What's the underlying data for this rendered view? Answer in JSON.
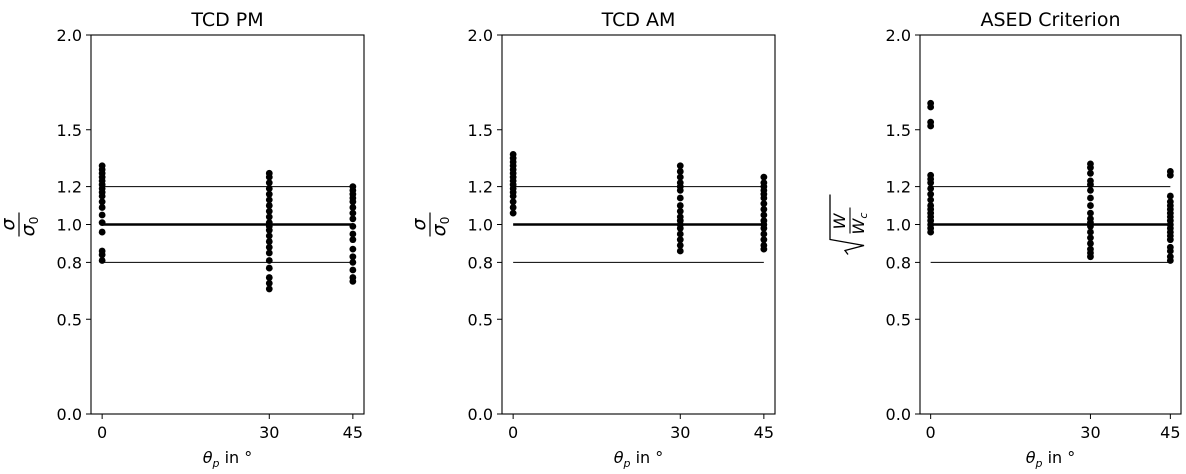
{
  "chart_data": [
    {
      "type": "scatter",
      "title": "TCD PM",
      "xlabel": {
        "symbol": "θ",
        "subscript": "p",
        "rest": " in °"
      },
      "ylabel": {
        "kind": "fraction",
        "num": "σ",
        "den": "σ",
        "den_sub": "0"
      },
      "x_ticks": [
        0,
        30,
        45
      ],
      "y_ticks": [
        0.0,
        0.5,
        0.8,
        1.0,
        1.2,
        1.5,
        2.0
      ],
      "y_tick_labels": [
        "0.0",
        "0.5",
        "0.8",
        "1.0",
        "1.2",
        "1.5",
        "2.0"
      ],
      "xlim": [
        -2,
        47
      ],
      "ylim": [
        0,
        2
      ],
      "reference_lines": [
        {
          "y": 0.8,
          "weight": "thin"
        },
        {
          "y": 1.0,
          "weight": "thick"
        },
        {
          "y": 1.2,
          "weight": "thin"
        }
      ],
      "series": [
        {
          "x": 0,
          "values": [
            0.81,
            0.84,
            0.86,
            0.96,
            1.01,
            1.05,
            1.09,
            1.12,
            1.15,
            1.17,
            1.19,
            1.21,
            1.23,
            1.25,
            1.27,
            1.29,
            1.31
          ]
        },
        {
          "x": 30,
          "values": [
            0.66,
            0.69,
            0.72,
            0.77,
            0.81,
            0.85,
            0.88,
            0.91,
            0.94,
            0.97,
            0.99,
            1.01,
            1.04,
            1.07,
            1.1,
            1.13,
            1.16,
            1.19,
            1.22,
            1.25,
            1.27
          ]
        },
        {
          "x": 45,
          "values": [
            0.7,
            0.72,
            0.76,
            0.8,
            0.83,
            0.87,
            0.92,
            0.95,
            0.99,
            1.03,
            1.06,
            1.09,
            1.12,
            1.14,
            1.16,
            1.18,
            1.2
          ]
        }
      ]
    },
    {
      "type": "scatter",
      "title": "TCD AM",
      "xlabel": {
        "symbol": "θ",
        "subscript": "p",
        "rest": " in °"
      },
      "ylabel": {
        "kind": "fraction",
        "num": "σ",
        "den": "σ",
        "den_sub": "0"
      },
      "x_ticks": [
        0,
        30,
        45
      ],
      "y_ticks": [
        0.0,
        0.5,
        0.8,
        1.0,
        1.2,
        1.5,
        2.0
      ],
      "y_tick_labels": [
        "0.0",
        "0.5",
        "0.8",
        "1.0",
        "1.2",
        "1.5",
        "2.0"
      ],
      "xlim": [
        -2,
        47
      ],
      "ylim": [
        0,
        2
      ],
      "reference_lines": [
        {
          "y": 0.8,
          "weight": "thin"
        },
        {
          "y": 1.0,
          "weight": "thick"
        },
        {
          "y": 1.2,
          "weight": "thin"
        }
      ],
      "series": [
        {
          "x": 0,
          "values": [
            1.06,
            1.09,
            1.12,
            1.15,
            1.17,
            1.19,
            1.21,
            1.23,
            1.25,
            1.27,
            1.29,
            1.31,
            1.33,
            1.35,
            1.37
          ]
        },
        {
          "x": 30,
          "values": [
            0.86,
            0.89,
            0.92,
            0.95,
            0.98,
            1.0,
            1.02,
            1.04,
            1.07,
            1.1,
            1.14,
            1.18,
            1.2,
            1.22,
            1.25,
            1.28,
            1.31
          ]
        },
        {
          "x": 45,
          "values": [
            0.87,
            0.89,
            0.92,
            0.95,
            0.98,
            1.0,
            1.02,
            1.05,
            1.08,
            1.11,
            1.14,
            1.16,
            1.18,
            1.2,
            1.22,
            1.25
          ]
        }
      ]
    },
    {
      "type": "scatter",
      "title": "ASED Criterion",
      "xlabel": {
        "symbol": "θ",
        "subscript": "p",
        "rest": " in °"
      },
      "ylabel": {
        "kind": "sqrt",
        "num": "W",
        "den": "W",
        "den_sub": "c"
      },
      "x_ticks": [
        0,
        30,
        45
      ],
      "y_ticks": [
        0.0,
        0.5,
        0.8,
        1.0,
        1.2,
        1.5,
        2.0
      ],
      "y_tick_labels": [
        "0.0",
        "0.5",
        "0.8",
        "1.0",
        "1.2",
        "1.5",
        "2.0"
      ],
      "xlim": [
        -2,
        47
      ],
      "ylim": [
        0,
        2
      ],
      "reference_lines": [
        {
          "y": 0.8,
          "weight": "thin"
        },
        {
          "y": 1.0,
          "weight": "thick"
        },
        {
          "y": 1.2,
          "weight": "thin"
        }
      ],
      "series": [
        {
          "x": 0,
          "values": [
            0.96,
            0.98,
            1.0,
            1.02,
            1.04,
            1.06,
            1.08,
            1.1,
            1.13,
            1.16,
            1.19,
            1.22,
            1.24,
            1.26,
            1.52,
            1.54,
            1.62,
            1.64
          ]
        },
        {
          "x": 30,
          "values": [
            0.83,
            0.85,
            0.87,
            0.9,
            0.93,
            0.96,
            0.99,
            1.01,
            1.03,
            1.06,
            1.1,
            1.14,
            1.18,
            1.21,
            1.23,
            1.27,
            1.3,
            1.32
          ]
        },
        {
          "x": 45,
          "values": [
            0.81,
            0.83,
            0.86,
            0.88,
            0.92,
            0.94,
            0.96,
            0.98,
            1.0,
            1.02,
            1.04,
            1.06,
            1.08,
            1.1,
            1.12,
            1.15,
            1.26,
            1.28
          ]
        }
      ]
    }
  ]
}
